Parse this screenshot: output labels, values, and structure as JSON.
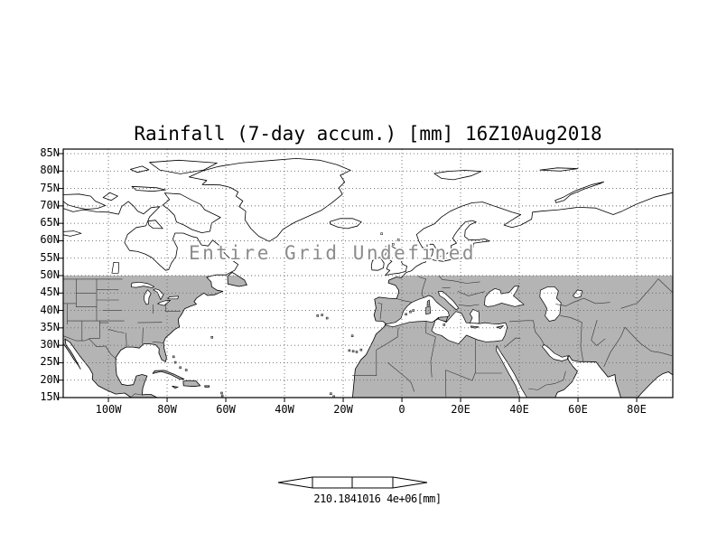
{
  "title": "Rainfall (7-day accum.) [mm] 16Z10Aug2018",
  "overlay_note": "Entire Grid Undefined",
  "legend": {
    "label": "210.1841016 4e+06[mm]"
  },
  "colors": {
    "background": "#ffffff",
    "land_shade": "#b4b4b4",
    "coastline": "#000000",
    "grid_dots": "#666666",
    "note_text": "#8c8c8c",
    "border_lines": "#333333"
  },
  "chart_data": {
    "type": "map",
    "projection": "equirectangular",
    "title": "Rainfall (7-day accum.) [mm] 16Z10Aug2018",
    "variable": "Rainfall (7-day accum.)",
    "units": "mm",
    "valid_time": "16Z10Aug2018",
    "lon_range": [
      -115.4,
      92.3
    ],
    "lat_range": [
      15,
      86.3
    ],
    "x_ticks": [
      {
        "lon": -100,
        "label": "100W"
      },
      {
        "lon": -80,
        "label": "80W"
      },
      {
        "lon": -60,
        "label": "60W"
      },
      {
        "lon": -40,
        "label": "40W"
      },
      {
        "lon": -20,
        "label": "20W"
      },
      {
        "lon": 0,
        "label": "0"
      },
      {
        "lon": 20,
        "label": "20E"
      },
      {
        "lon": 40,
        "label": "40E"
      },
      {
        "lon": 60,
        "label": "60E"
      },
      {
        "lon": 80,
        "label": "80E"
      }
    ],
    "y_ticks": [
      {
        "lat": 85,
        "label": "85N"
      },
      {
        "lat": 80,
        "label": "80N"
      },
      {
        "lat": 75,
        "label": "75N"
      },
      {
        "lat": 70,
        "label": "70N"
      },
      {
        "lat": 65,
        "label": "65N"
      },
      {
        "lat": 60,
        "label": "60N"
      },
      {
        "lat": 55,
        "label": "55N"
      },
      {
        "lat": 50,
        "label": "50N"
      },
      {
        "lat": 45,
        "label": "45N"
      },
      {
        "lat": 40,
        "label": "40N"
      },
      {
        "lat": 35,
        "label": "35N"
      },
      {
        "lat": 30,
        "label": "30N"
      },
      {
        "lat": 25,
        "label": "25N"
      },
      {
        "lat": 20,
        "label": "20N"
      },
      {
        "lat": 15,
        "label": "15N"
      }
    ],
    "grid_style": "dotted",
    "data_status": "Entire Grid Undefined",
    "shaded_land_below_lat": 50,
    "legend_label": "210.1841016 4e+06[mm]"
  }
}
